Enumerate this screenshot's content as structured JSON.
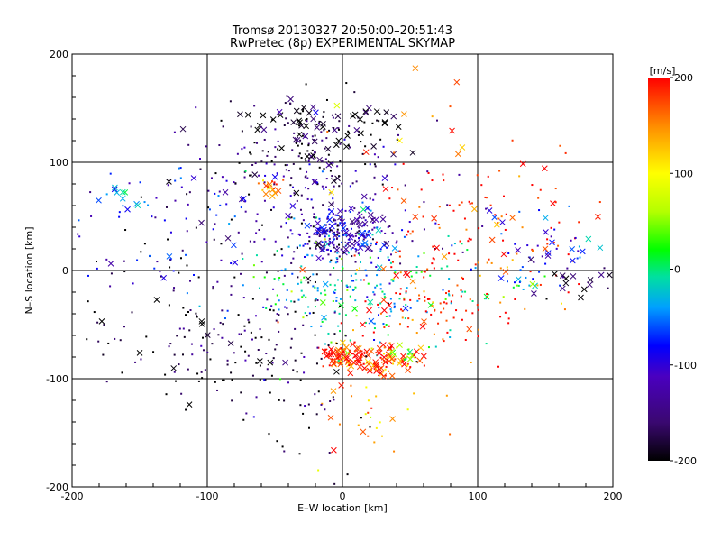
{
  "chart_data": {
    "type": "scatter",
    "title": "Tromsø 20130327 20:50:00–20:51:43",
    "subtitle": "RwPretec (8p) EXPERIMENTAL SKYMAP",
    "xlabel": "E–W location [km]",
    "ylabel": "N–S location [km]",
    "xlim": [
      -200,
      200
    ],
    "ylim": [
      -200,
      200
    ],
    "x_ticks": [
      "-200",
      "-100",
      "0",
      "100",
      "200"
    ],
    "y_ticks": [
      "-200",
      "-100",
      "0",
      "100",
      "200"
    ],
    "grid": true,
    "marker_types": [
      "small-dot",
      "cross"
    ],
    "colorbar": {
      "label": "[m/s]",
      "range": [
        -200,
        200
      ],
      "ticks": [
        "-200",
        "-100",
        "0",
        "100",
        "200"
      ],
      "colors": [
        "#000000",
        "#5a0a8c",
        "#0000ff",
        "#00c8ff",
        "#00e070",
        "#00ff00",
        "#b4ff00",
        "#ffff00",
        "#ffa000",
        "#ff0000"
      ]
    },
    "clusters": [
      {
        "x": -15,
        "y": 130,
        "sx": 30,
        "sy": 18,
        "vel": -190,
        "count": 140,
        "cross_ratio": 0.45
      },
      {
        "x": -40,
        "y": 90,
        "sx": 45,
        "sy": 25,
        "vel": -160,
        "count": 110,
        "cross_ratio": 0.15
      },
      {
        "x": 0,
        "y": 35,
        "sx": 18,
        "sy": 12,
        "vel": -110,
        "count": 230,
        "cross_ratio": 0.2
      },
      {
        "x": -30,
        "y": 50,
        "sx": 50,
        "sy": 35,
        "vel": -130,
        "count": 120,
        "cross_ratio": 0.1
      },
      {
        "x": -52,
        "y": 78,
        "sx": 4,
        "sy": 4,
        "vel": 150,
        "count": 20,
        "cross_ratio": 0.3
      },
      {
        "x": 5,
        "y": -20,
        "sx": 40,
        "sy": 28,
        "vel": -20,
        "count": 220,
        "cross_ratio": 0.05
      },
      {
        "x": 0,
        "y": -78,
        "sx": 9,
        "sy": 6,
        "vel": 190,
        "count": 70,
        "cross_ratio": 0.55
      },
      {
        "x": 32,
        "y": -82,
        "sx": 12,
        "sy": 7,
        "vel": 180,
        "count": 75,
        "cross_ratio": 0.6
      },
      {
        "x": 45,
        "y": -78,
        "sx": 5,
        "sy": 5,
        "vel": 70,
        "count": 15,
        "cross_ratio": 0.4
      },
      {
        "x": -110,
        "y": -50,
        "sx": 55,
        "sy": 40,
        "vel": -200,
        "count": 120,
        "cross_ratio": 0.1
      },
      {
        "x": -130,
        "y": 50,
        "sx": 40,
        "sy": 30,
        "vel": -100,
        "count": 60,
        "cross_ratio": 0.15
      },
      {
        "x": -165,
        "y": 70,
        "sx": 12,
        "sy": 10,
        "vel": -20,
        "count": 10,
        "cross_ratio": 0.8
      },
      {
        "x": 100,
        "y": 30,
        "sx": 45,
        "sy": 40,
        "vel": 190,
        "count": 140,
        "cross_ratio": 0.15
      },
      {
        "x": 150,
        "y": 20,
        "sx": 25,
        "sy": 20,
        "vel": -80,
        "count": 45,
        "cross_ratio": 0.4
      },
      {
        "x": 175,
        "y": -10,
        "sx": 12,
        "sy": 10,
        "vel": -190,
        "count": 15,
        "cross_ratio": 0.6
      },
      {
        "x": 135,
        "y": -15,
        "sx": 6,
        "sy": 5,
        "vel": -20,
        "count": 15,
        "cross_ratio": 0.3
      },
      {
        "x": 60,
        "y": -40,
        "sx": 35,
        "sy": 30,
        "vel": 190,
        "count": 90,
        "cross_ratio": 0.1
      },
      {
        "x": 70,
        "y": 140,
        "sx": 40,
        "sy": 35,
        "vel": 170,
        "count": 25,
        "cross_ratio": 0.5
      },
      {
        "x": -60,
        "y": -60,
        "sx": 35,
        "sy": 35,
        "vel": -170,
        "count": 90,
        "cross_ratio": 0.1
      },
      {
        "x": 20,
        "y": -130,
        "sx": 25,
        "sy": 20,
        "vel": 150,
        "count": 30,
        "cross_ratio": 0.1
      },
      {
        "x": -30,
        "y": -120,
        "sx": 30,
        "sy": 30,
        "vel": -180,
        "count": 35,
        "cross_ratio": 0.1
      }
    ]
  }
}
